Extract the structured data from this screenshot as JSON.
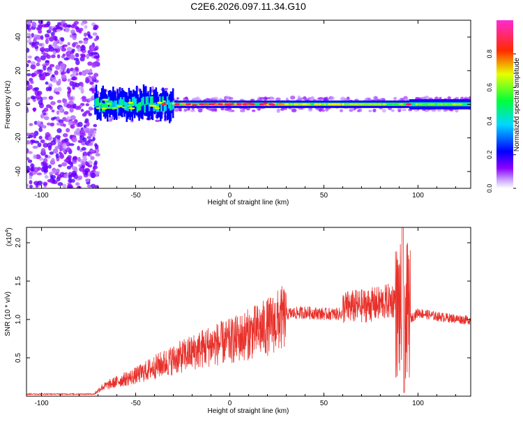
{
  "title": "C2E6.2026.097.11.34.G10",
  "chart_data": [
    {
      "type": "heatmap",
      "xlabel": "Height of straight line (km)",
      "ylabel": "Frequency (Hz)",
      "xlim": [
        -108,
        128
      ],
      "ylim": [
        -50,
        50
      ],
      "x_ticks": [
        -100,
        -50,
        0,
        50,
        100
      ],
      "x_tick_labels": [
        "-100",
        "-50",
        "0",
        "50",
        "100"
      ],
      "y_ticks": [
        40,
        20,
        0,
        -20,
        -40
      ],
      "y_tick_labels": [
        "40",
        "20",
        "0",
        "-20",
        "-40"
      ],
      "colorbar": {
        "label": "Normalized spectral amplitude",
        "range": [
          0,
          1
        ],
        "ticks": [
          0.0,
          0.2,
          0.4,
          0.6,
          0.8
        ],
        "tick_labels": [
          "0.0",
          "0.2",
          "0.4",
          "0.6",
          "0.8"
        ],
        "colormap": "rainbow (white-purple-blue-cyan-green-yellow-red-magenta)"
      },
      "features": [
        {
          "x_range": [
            -108,
            -72
          ],
          "description": "broadband noise across all frequencies",
          "amplitude": 0.1
        },
        {
          "x_range": [
            -72,
            -30
          ],
          "frequency_center": 0,
          "frequency_spread": 8,
          "amplitude": 0.4
        },
        {
          "x_range": [
            -30,
            95
          ],
          "frequency_center": 0,
          "frequency_spread": 2,
          "amplitude": 0.85
        },
        {
          "x_range": [
            95,
            128
          ],
          "frequency_center": 0,
          "frequency_spread": 3,
          "amplitude": 0.55
        }
      ]
    },
    {
      "type": "line",
      "xlabel": "Height of straight line (km)",
      "ylabel": "SNR (10 * v/v)",
      "y_multiplier_label": "(x10",
      "y_multiplier_exp": "4",
      "y_multiplier_close": ")",
      "xlim": [
        -108,
        128
      ],
      "ylim": [
        0,
        2.2
      ],
      "x_ticks": [
        -100,
        -50,
        0,
        50,
        100
      ],
      "x_tick_labels": [
        "-100",
        "-50",
        "0",
        "50",
        "100"
      ],
      "y_ticks": [
        0.5,
        1.0,
        1.5,
        2.0
      ],
      "y_tick_labels": [
        "0.5",
        "1.0",
        "1.5",
        "2.0"
      ],
      "color": "#e8302a",
      "series": [
        {
          "x": [
            -108,
            -100,
            -90,
            -80,
            -72,
            -68,
            -60,
            -50,
            -40,
            -30,
            -20,
            -10,
            0,
            10,
            20,
            30,
            40,
            50,
            60,
            70,
            80,
            88,
            92,
            93,
            95,
            100,
            110,
            120,
            128
          ],
          "y": [
            0.02,
            0.02,
            0.02,
            0.02,
            0.03,
            0.12,
            0.2,
            0.28,
            0.4,
            0.5,
            0.6,
            0.7,
            0.75,
            0.85,
            0.95,
            1.1,
            1.12,
            1.1,
            1.1,
            1.12,
            1.15,
            1.2,
            2.2,
            0.05,
            1.0,
            1.1,
            1.05,
            1.02,
            1.0
          ]
        }
      ]
    }
  ]
}
